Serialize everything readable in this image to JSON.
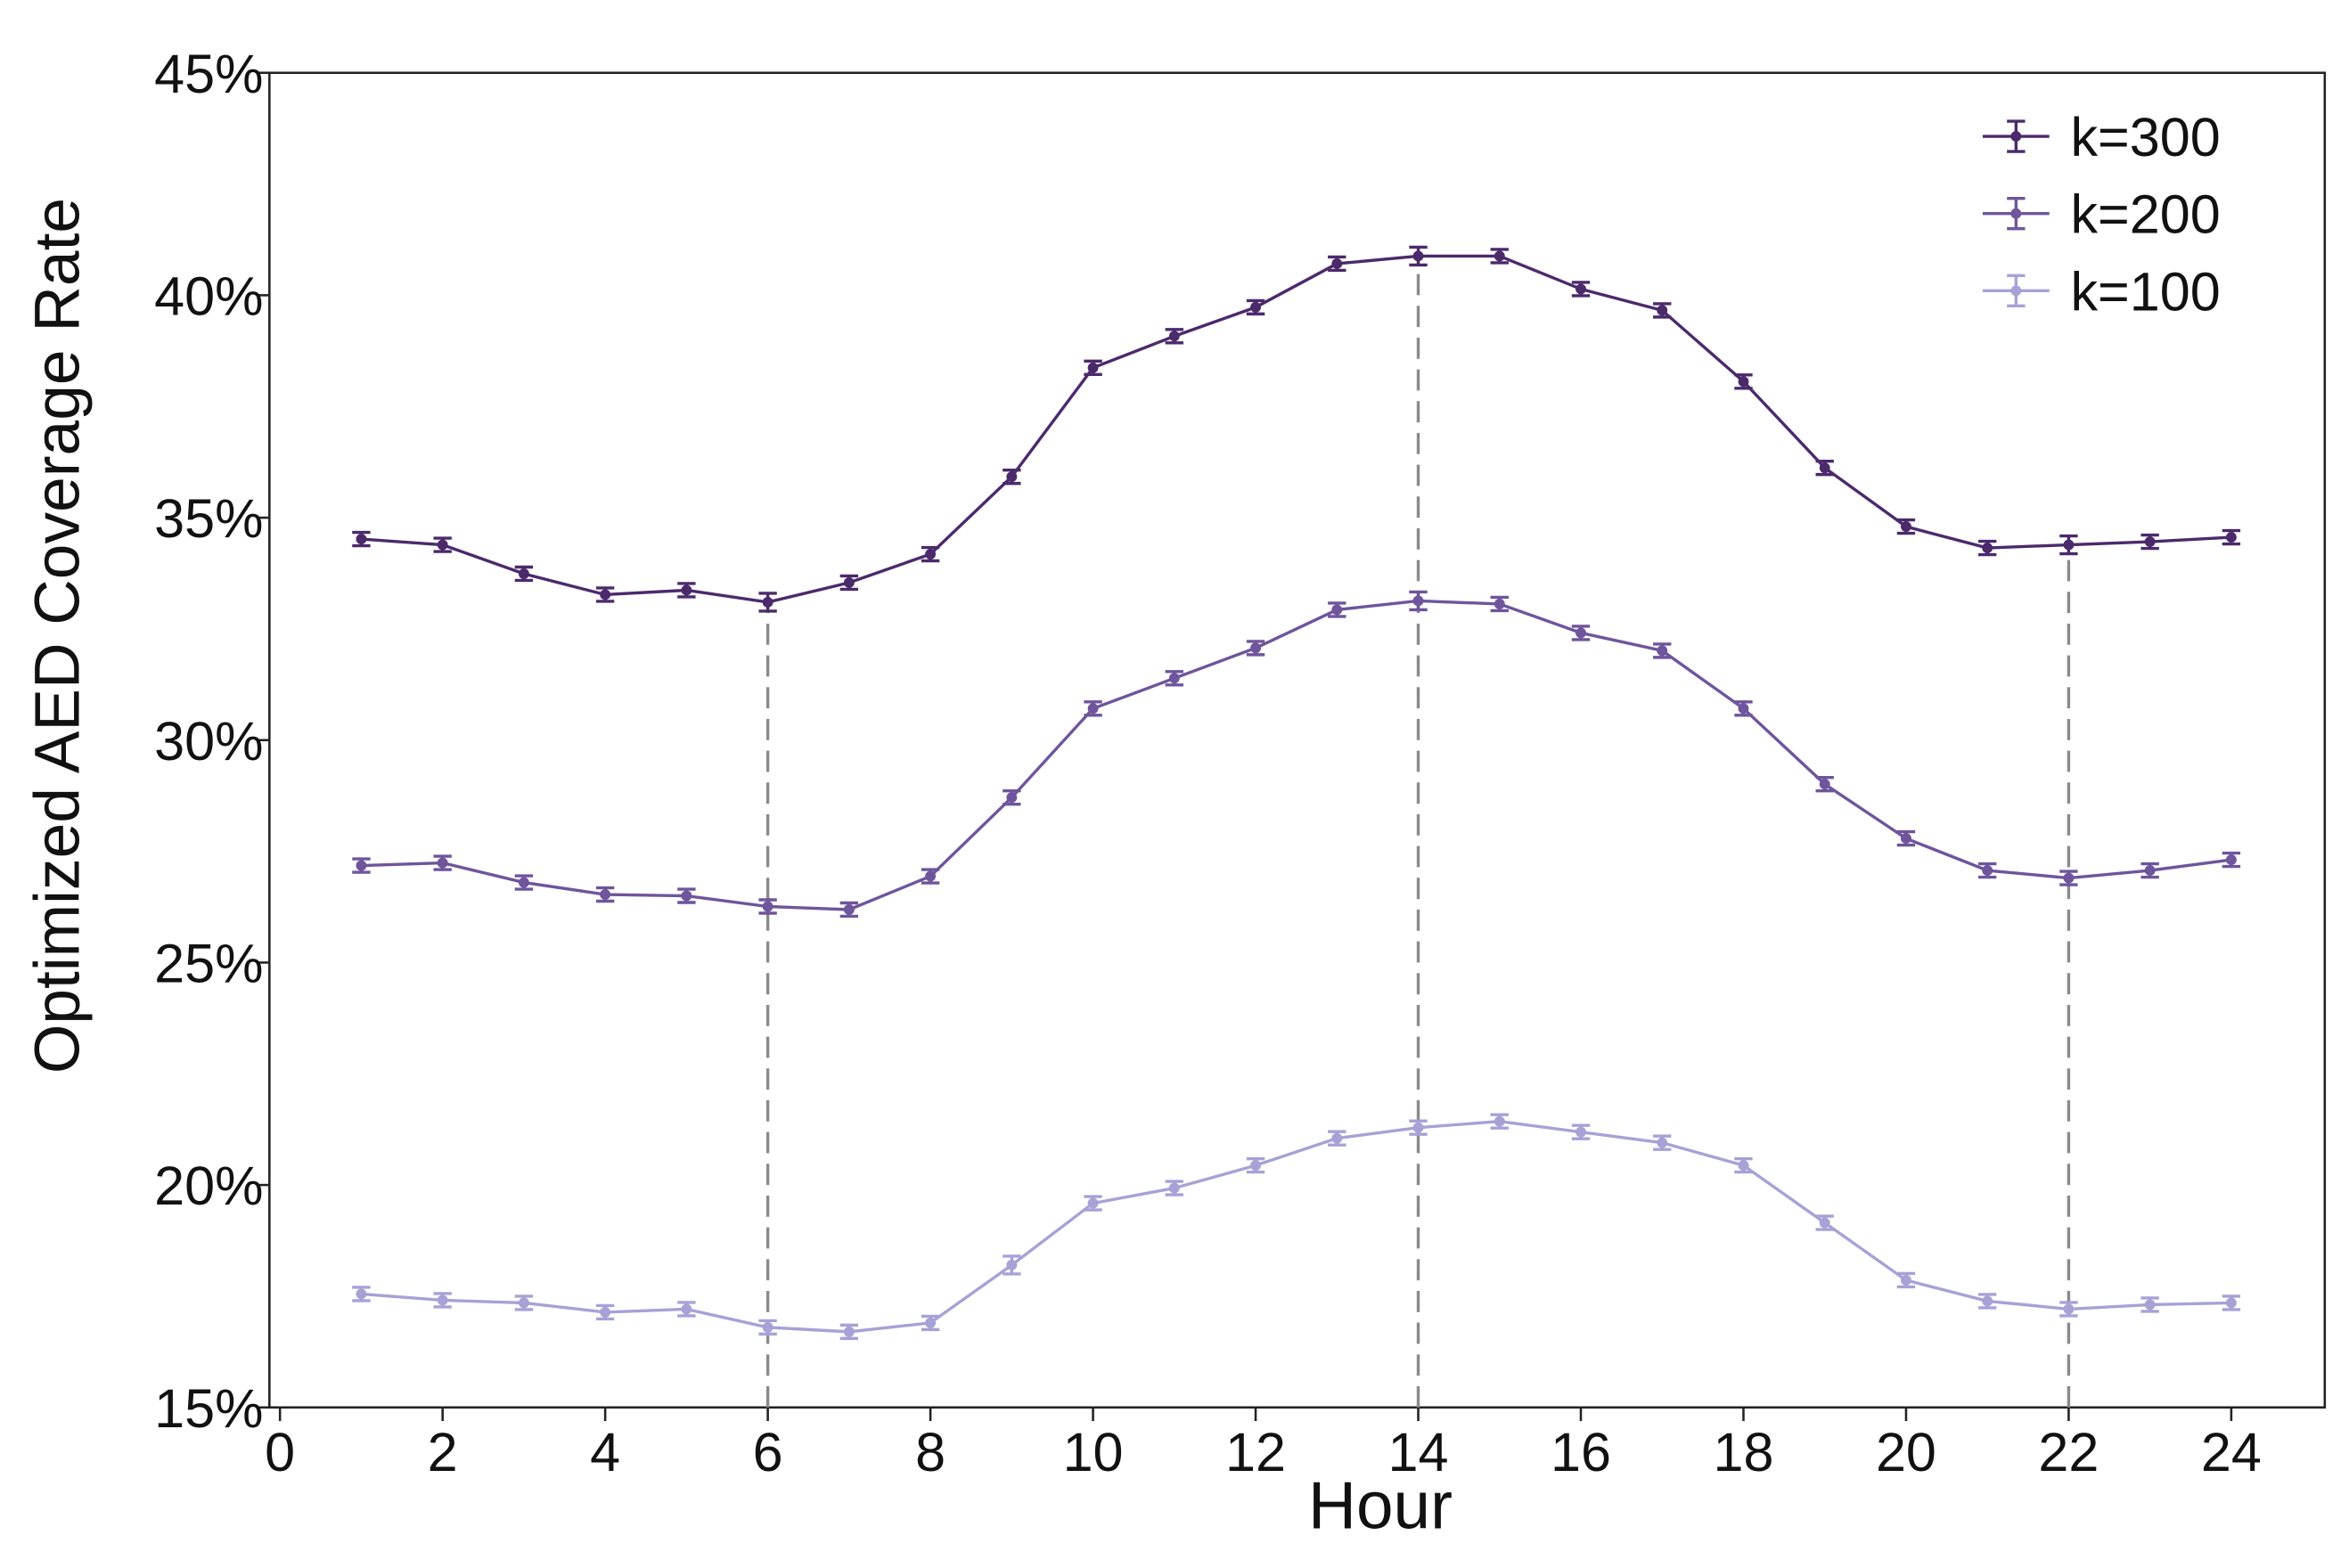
{
  "chart_data": {
    "type": "line",
    "x_label": "Hour",
    "y_label": "Optimized AED Coverage Rate",
    "x": [
      1,
      2,
      3,
      4,
      5,
      6,
      7,
      8,
      9,
      10,
      11,
      12,
      13,
      14,
      15,
      16,
      17,
      18,
      19,
      20,
      21,
      22,
      23,
      24
    ],
    "series": [
      {
        "name": "k=300",
        "color": "#4b2a6b",
        "values": [
          34.52,
          34.39,
          33.74,
          33.27,
          33.37,
          33.1,
          33.54,
          34.18,
          35.92,
          38.37,
          39.08,
          39.73,
          40.71,
          40.88,
          40.88,
          40.14,
          39.66,
          38.06,
          36.12,
          34.8,
          34.32,
          34.39,
          34.46,
          34.56
        ],
        "errors": [
          0.15,
          0.15,
          0.15,
          0.15,
          0.15,
          0.2,
          0.15,
          0.15,
          0.15,
          0.15,
          0.15,
          0.15,
          0.15,
          0.2,
          0.15,
          0.15,
          0.15,
          0.15,
          0.15,
          0.15,
          0.15,
          0.2,
          0.15,
          0.15
        ]
      },
      {
        "name": "k=200",
        "color": "#6e559c",
        "values": [
          27.18,
          27.24,
          26.8,
          26.53,
          26.5,
          26.26,
          26.19,
          26.94,
          28.71,
          30.71,
          31.39,
          32.07,
          32.93,
          33.13,
          33.06,
          32.41,
          32.01,
          30.71,
          29.01,
          27.79,
          27.07,
          26.9,
          27.07,
          27.31
        ],
        "errors": [
          0.15,
          0.15,
          0.15,
          0.15,
          0.15,
          0.15,
          0.15,
          0.15,
          0.15,
          0.15,
          0.15,
          0.15,
          0.15,
          0.2,
          0.15,
          0.15,
          0.15,
          0.15,
          0.15,
          0.15,
          0.15,
          0.15,
          0.15,
          0.15
        ]
      },
      {
        "name": "k=100",
        "color": "#a6a2d6",
        "values": [
          17.55,
          17.41,
          17.35,
          17.14,
          17.21,
          16.8,
          16.7,
          16.9,
          18.2,
          19.59,
          19.93,
          20.44,
          21.05,
          21.29,
          21.43,
          21.19,
          20.95,
          20.44,
          19.15,
          17.86,
          17.39,
          17.21,
          17.31,
          17.35
        ],
        "errors": [
          0.15,
          0.15,
          0.15,
          0.15,
          0.15,
          0.15,
          0.15,
          0.15,
          0.2,
          0.15,
          0.15,
          0.15,
          0.15,
          0.15,
          0.15,
          0.15,
          0.15,
          0.15,
          0.15,
          0.15,
          0.15,
          0.15,
          0.15,
          0.15
        ]
      }
    ],
    "vlines": [
      6,
      14,
      22
    ],
    "xlim": [
      -0.13,
      25.15
    ],
    "ylim": [
      15,
      45
    ],
    "xticks": [
      0,
      2,
      4,
      6,
      8,
      10,
      12,
      14,
      16,
      18,
      20,
      22,
      24
    ],
    "yticks": [
      {
        "value": 15,
        "label": "15%"
      },
      {
        "value": 20,
        "label": "20%"
      },
      {
        "value": 25,
        "label": "25%"
      },
      {
        "value": 30,
        "label": "30%"
      },
      {
        "value": 35,
        "label": "35%"
      },
      {
        "value": 40,
        "label": "40%"
      },
      {
        "value": 45,
        "label": "45%"
      }
    ],
    "legend": "upper right"
  }
}
